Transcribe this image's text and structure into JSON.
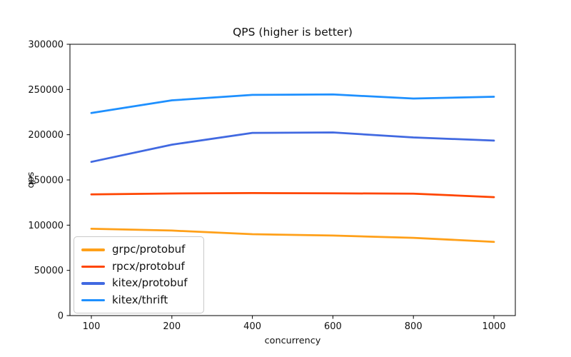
{
  "chart_data": {
    "type": "line",
    "title": "QPS (higher is better)",
    "xlabel": "concurrency",
    "ylabel": "qps",
    "x_categories": [
      100,
      200,
      400,
      600,
      800,
      1000
    ],
    "x_tick_labels": [
      "100",
      "200",
      "400",
      "600",
      "800",
      "1000"
    ],
    "ylim": [
      0,
      300000
    ],
    "y_ticks": [
      0,
      50000,
      100000,
      150000,
      200000,
      250000,
      300000
    ],
    "y_tick_labels": [
      "0",
      "50000",
      "100000",
      "150000",
      "200000",
      "250000",
      "300000"
    ],
    "grid": false,
    "legend_position": "lower left",
    "series": [
      {
        "name": "grpc/protobuf",
        "color": "#FFA019",
        "values": [
          96000,
          94000,
          90000,
          88500,
          86000,
          81500
        ]
      },
      {
        "name": "rpcx/protobuf",
        "color": "#FF4500",
        "values": [
          134000,
          135000,
          135500,
          135200,
          134800,
          131000
        ]
      },
      {
        "name": "kitex/protobuf",
        "color": "#4169E1",
        "values": [
          170000,
          189000,
          202000,
          202500,
          197000,
          193500
        ]
      },
      {
        "name": "kitex/thrift",
        "color": "#1E90FF",
        "values": [
          224000,
          238000,
          244000,
          244500,
          240000,
          242000
        ]
      }
    ]
  }
}
